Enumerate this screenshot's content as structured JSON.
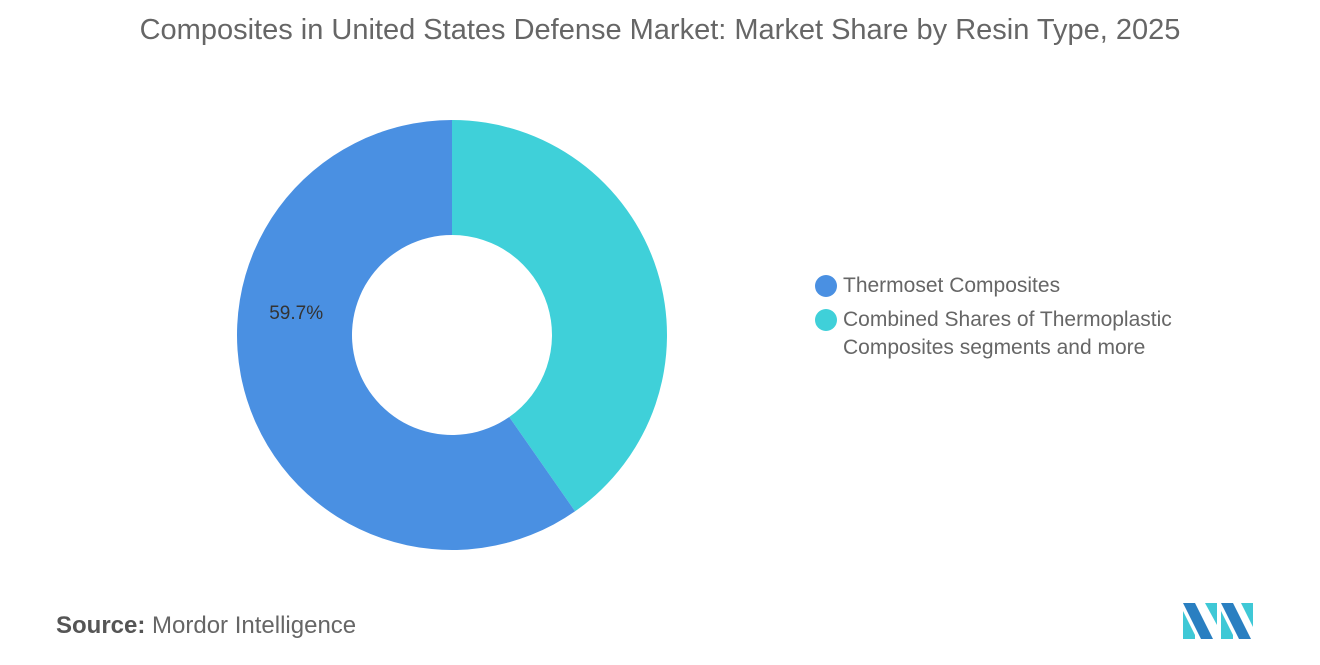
{
  "chart_data": {
    "type": "pie",
    "variant": "donut",
    "title": "Composites in United States Defense Market: Market Share by Resin Type, 2025",
    "categories": [
      "Thermoset Composites",
      "Combined Shares of Thermoplastic Composites segments and more"
    ],
    "values": [
      59.7,
      40.3
    ],
    "unit": "%",
    "colors": [
      "#4a90e2",
      "#3fd0d9"
    ],
    "data_labels": [
      "59.7%",
      ""
    ],
    "legend_position": "right"
  },
  "source": {
    "label": "Source:",
    "text": "Mordor Intelligence"
  },
  "logo": {
    "name": "Mordor Intelligence logo",
    "colors": [
      "#2a7fc1",
      "#3fc8d6"
    ]
  }
}
